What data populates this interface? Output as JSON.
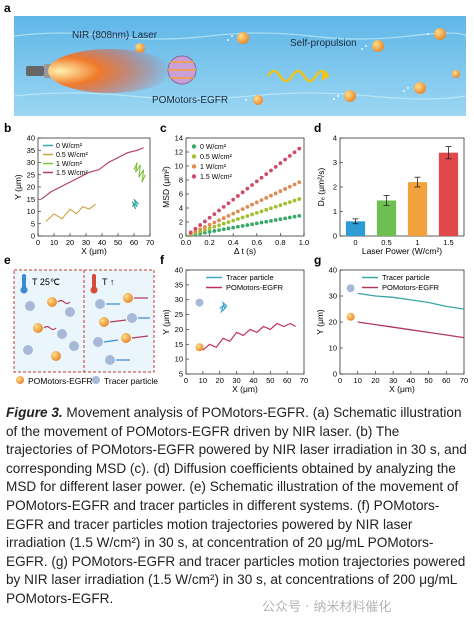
{
  "figure": {
    "panel_a": {
      "letter": "a",
      "laser_label": "NIR (808nm)  Laser",
      "motor_label": "POMotors-EGFR",
      "motion_label": "Self-propulsion"
    },
    "panel_b": {
      "letter": "b"
    },
    "panel_c": {
      "letter": "c"
    },
    "panel_d": {
      "letter": "d"
    },
    "panel_e": {
      "letter": "e",
      "left_label": "T 25℃",
      "right_label": "T ↑",
      "legend_motor": "POMotors-EGFR",
      "legend_tracer": "Tracer particle"
    },
    "panel_f": {
      "letter": "f"
    },
    "panel_g": {
      "letter": "g"
    }
  },
  "chart_data": [
    {
      "id": "b",
      "type": "line",
      "xlabel": "X (μm)",
      "ylabel": "Y (μm)",
      "xlim": [
        0,
        70
      ],
      "ylim": [
        0,
        40
      ],
      "xticks": [
        0,
        10,
        20,
        30,
        40,
        50,
        60,
        70
      ],
      "yticks": [
        0,
        5,
        10,
        15,
        20,
        25,
        30,
        35,
        40
      ],
      "series": [
        {
          "name": "0 W/cm²",
          "color": "#3aa6a6",
          "x": [
            59,
            60,
            61,
            59,
            62,
            60,
            63,
            61
          ],
          "y": [
            12,
            13,
            11,
            14,
            12,
            15,
            13,
            14
          ]
        },
        {
          "name": "0.5 W/cm²",
          "color": "#d0a040",
          "x": [
            5,
            10,
            15,
            20,
            24,
            28,
            32,
            36
          ],
          "y": [
            6,
            9,
            7,
            11,
            9,
            12,
            11,
            13
          ]
        },
        {
          "name": "1 W/cm²",
          "color": "#7cbf3a",
          "x": [
            60,
            62,
            61,
            64,
            63,
            66,
            65,
            67
          ],
          "y": [
            27,
            30,
            26,
            29,
            24,
            27,
            22,
            25
          ]
        },
        {
          "name": "1.5 W/cm²",
          "color": "#b03a6a",
          "x": [
            2,
            8,
            14,
            20,
            26,
            32,
            38,
            44,
            50,
            56,
            62,
            66
          ],
          "y": [
            15,
            18,
            20,
            22,
            24,
            26,
            27,
            30,
            32,
            34,
            35,
            36
          ]
        }
      ]
    },
    {
      "id": "c",
      "type": "scatter",
      "xlabel": "Δ t (s)",
      "ylabel": "MSD (μm²)",
      "xlim": [
        0,
        1.0
      ],
      "ylim": [
        0,
        14
      ],
      "xticks": [
        0.0,
        0.2,
        0.4,
        0.6,
        0.8,
        1.0
      ],
      "yticks": [
        0,
        2,
        4,
        6,
        8,
        10,
        12,
        14
      ],
      "series": [
        {
          "name": "0 W/cm²",
          "color": "#3aaa6a",
          "slope": 3.0
        },
        {
          "name": "0.5 W/cm²",
          "color": "#a0c030",
          "slope": 5.5
        },
        {
          "name": "1 W/cm²",
          "color": "#e08a50",
          "slope": 8.0
        },
        {
          "name": "1.5 W/cm²",
          "color": "#d04a6a",
          "slope": 13.0
        }
      ],
      "x": [
        0.04,
        0.08,
        0.12,
        0.16,
        0.2,
        0.24,
        0.28,
        0.32,
        0.36,
        0.4,
        0.44,
        0.48,
        0.52,
        0.56,
        0.6,
        0.64,
        0.68,
        0.72,
        0.76,
        0.8,
        0.84,
        0.88,
        0.92,
        0.96
      ]
    },
    {
      "id": "d",
      "type": "bar",
      "xlabel": "Laser Power (W/cm²)",
      "ylabel": "Dₑ (μm²/s)",
      "categories": [
        "0",
        "0.5",
        "1",
        "1.5"
      ],
      "values": [
        0.6,
        1.45,
        2.2,
        3.4
      ],
      "errors": [
        0.1,
        0.2,
        0.2,
        0.25
      ],
      "ylim": [
        0,
        4
      ],
      "yticks": [
        0,
        1,
        2,
        3,
        4
      ],
      "colors": [
        "#2c9bd6",
        "#6dbf52",
        "#f2a23c",
        "#e0484a"
      ]
    },
    {
      "id": "f",
      "type": "line",
      "xlabel": "X (μm)",
      "ylabel": "Y (μm)",
      "xlim": [
        0,
        70
      ],
      "ylim": [
        5,
        40
      ],
      "xticks": [
        0,
        10,
        20,
        30,
        40,
        50,
        60,
        70
      ],
      "yticks": [
        5,
        10,
        15,
        20,
        25,
        30,
        35,
        40
      ],
      "series": [
        {
          "name": "Tracer particle",
          "color": "#3aa6c8",
          "x": [
            20,
            22,
            21,
            23,
            22,
            24,
            23
          ],
          "y": [
            27,
            28,
            26,
            27,
            29,
            28,
            27
          ]
        },
        {
          "name": "POMotors-EGFR",
          "color": "#c0305a",
          "x": [
            10,
            14,
            18,
            22,
            26,
            30,
            34,
            38,
            42,
            46,
            50,
            54,
            58,
            62,
            65
          ],
          "y": [
            13,
            15,
            14,
            17,
            16,
            19,
            18,
            20,
            19,
            21,
            20,
            22,
            21,
            22,
            21
          ]
        }
      ]
    },
    {
      "id": "g",
      "type": "line",
      "xlabel": "X (μm)",
      "ylabel": "Y (μm)",
      "xlim": [
        0,
        70
      ],
      "ylim": [
        0,
        40
      ],
      "xticks": [
        0,
        10,
        20,
        30,
        40,
        50,
        60,
        70
      ],
      "yticks": [
        0,
        10,
        20,
        30,
        40
      ],
      "series": [
        {
          "name": "Tracer particle",
          "color": "#3aa6a6",
          "x": [
            10,
            20,
            30,
            40,
            50,
            60,
            70
          ],
          "y": [
            31,
            30,
            29.5,
            28.5,
            27.5,
            26,
            25
          ]
        },
        {
          "name": "POMotors-EGFR",
          "color": "#b03a5a",
          "x": [
            10,
            20,
            30,
            40,
            50,
            60,
            70
          ],
          "y": [
            20,
            19,
            18,
            17,
            16,
            15,
            14
          ]
        }
      ]
    }
  ],
  "caption": {
    "lead": "Figure 3.",
    "text": " Movement analysis of POMotors-EGFR. (a) Schematic illustration of the movement of POMotors-EGFR driven by NIR laser. (b) The trajectories of POMotors-EGFR powered by NIR laser irradiation in 30 s, and corresponding MSD (c). (d) Diffusion coefficients obtained by analyzing the MSD for different laser power. (e) Schematic illustration of the movement of POMotors-EGFR and tracer particles in different systems. (f) POMotors-EGFR and tracer particles motion trajectories powered by NIR laser irradiation (1.5 W/cm²) in 30 s, at concentration of 20 μg/mL POMotors-EGFR. (g) POMotors-EGFR and tracer particles motion trajectories powered by NIR laser irradiation (1.5 W/cm²) in 30 s, at concentrations of 200 μg/mL POMotors-EGFR."
  },
  "watermark": "公众号 · 纳米材料催化"
}
